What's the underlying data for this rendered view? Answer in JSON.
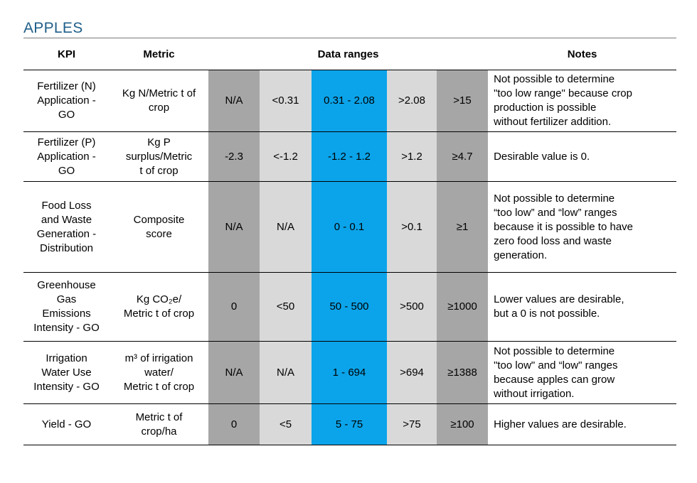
{
  "title": "APPLES",
  "colors": {
    "dark_gray": "#a6a6a6",
    "light_gray": "#d9d9d9",
    "blue": "#0ba4ea",
    "title": "#1f5f8b"
  },
  "headers": {
    "kpi": "KPI",
    "metric": "Metric",
    "ranges": "Data ranges",
    "notes": "Notes"
  },
  "rows": [
    {
      "kpi": [
        "Fertilizer (N)",
        "Application -",
        "GO"
      ],
      "metric": [
        "Kg N/Metric t of",
        "crop"
      ],
      "r1": "N/A",
      "r2": "<0.31",
      "r3": "0.31 - 2.08",
      "r4": ">2.08",
      "r5": ">15",
      "notes": [
        "Not possible to determine",
        "\"too low range\" because crop",
        "production is possible",
        "without fertilizer addition."
      ]
    },
    {
      "kpi": [
        "Fertilizer (P)",
        "Application -",
        "GO"
      ],
      "metric": [
        "Kg P",
        "surplus/Metric",
        "t of crop"
      ],
      "r1": "-2.3",
      "r2": "<-1.2",
      "r3": "-1.2 - 1.2",
      "r4": ">1.2",
      "r5": "≥4.7",
      "notes": [
        "Desirable value is 0."
      ]
    },
    {
      "kpi": [
        "Food Loss",
        "and Waste",
        "Generation -",
        "Distribution"
      ],
      "metric": [
        "Composite",
        "score"
      ],
      "r1": "N/A",
      "r2": "N/A",
      "r3": "0 - 0.1",
      "r4": ">0.1",
      "r5": "≥1",
      "notes": [
        "Not possible to determine",
        "“too low” and “low” ranges",
        "because it is possible to have",
        "zero food loss and waste",
        "generation."
      ]
    },
    {
      "kpi": [
        "Greenhouse",
        "Gas",
        "Emissions",
        "Intensity - GO"
      ],
      "metric": [
        "Kg CO₂e/",
        "Metric t of crop"
      ],
      "r1": "0",
      "r2": "<50",
      "r3": "50 - 500",
      "r4": ">500",
      "r5": "≥1000",
      "notes": [
        "Lower values are desirable,",
        "but a 0 is not possible."
      ]
    },
    {
      "kpi": [
        "Irrigation",
        "Water Use",
        "Intensity - GO"
      ],
      "metric": [
        "m³ of irrigation",
        "water/",
        "Metric t of crop"
      ],
      "r1": "N/A",
      "r2": "N/A",
      "r3": "1 - 694",
      "r4": ">694",
      "r5": "≥1388",
      "notes": [
        "Not possible to determine",
        "\"too low\" and “low\" ranges",
        "because apples can grow",
        "without irrigation."
      ]
    },
    {
      "kpi": [
        "Yield - GO"
      ],
      "metric": [
        "Metric t of",
        "crop/ha"
      ],
      "r1": "0",
      "r2": "<5",
      "r3": "5 - 75",
      "r4": ">75",
      "r5": "≥100",
      "notes": [
        "Higher values are desirable."
      ]
    }
  ]
}
